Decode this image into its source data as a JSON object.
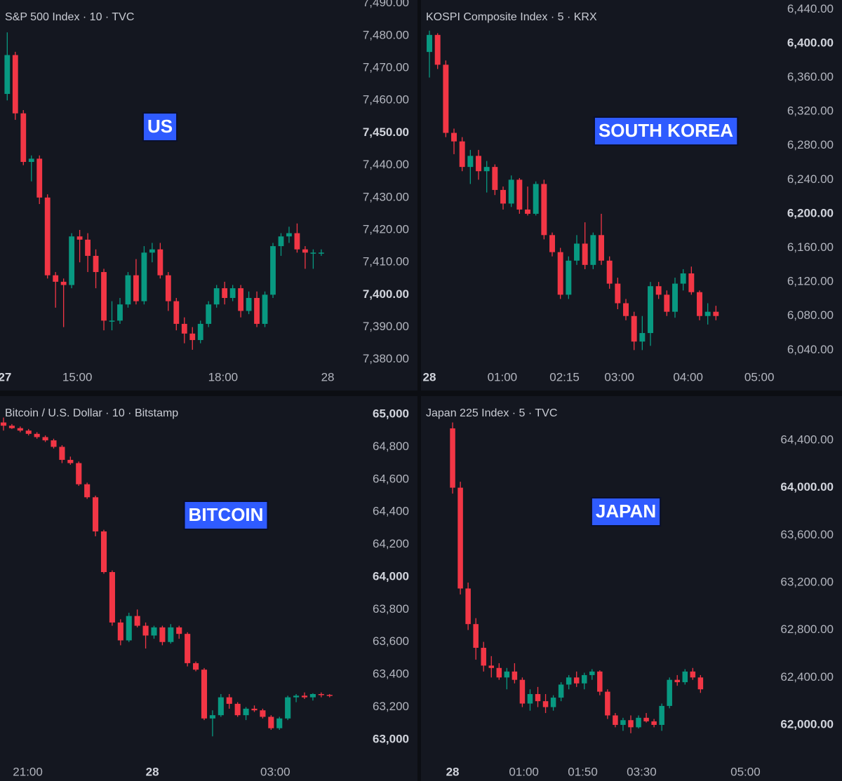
{
  "chart_data": [
    {
      "type": "candlestick",
      "title": "S&P 500 Index · 10 · TVC",
      "annotation": "US",
      "up_color": "#089981",
      "down_color": "#f23645",
      "ylim": [
        7378,
        7491
      ],
      "yticks": [
        {
          "value": 7490,
          "label": "7,490.00"
        },
        {
          "value": 7480,
          "label": "7,480.00"
        },
        {
          "value": 7470,
          "label": "7,470.00"
        },
        {
          "value": 7460,
          "label": "7,460.00"
        },
        {
          "value": 7450,
          "label": "7,450.00",
          "bold": true
        },
        {
          "value": 7440,
          "label": "7,440.00"
        },
        {
          "value": 7430,
          "label": "7,430.00"
        },
        {
          "value": 7420,
          "label": "7,420.00"
        },
        {
          "value": 7410,
          "label": "7,410.00"
        },
        {
          "value": 7400,
          "label": "7,400.00",
          "bold": true
        },
        {
          "value": 7390,
          "label": "7,390.00"
        },
        {
          "value": 7380,
          "label": "7,380.00"
        }
      ],
      "xlim": [
        -0.9,
        41.8
      ],
      "xticks": [
        {
          "value": -0.3,
          "label": "27",
          "bold": true
        },
        {
          "value": 8.7,
          "label": "15:00"
        },
        {
          "value": 26.8,
          "label": "18:00"
        },
        {
          "value": 39.8,
          "label": "28"
        }
      ],
      "candles": [
        [
          7462,
          7481,
          7460,
          7474
        ],
        [
          7474,
          7475,
          7454,
          7456
        ],
        [
          7456,
          7457,
          7440,
          7441
        ],
        [
          7441,
          7443,
          7435,
          7442
        ],
        [
          7442,
          7443,
          7428,
          7430
        ],
        [
          7430,
          7431,
          7405,
          7406
        ],
        [
          7406,
          7407,
          7396,
          7404
        ],
        [
          7404,
          7405,
          7390,
          7403
        ],
        [
          7403,
          7419,
          7402,
          7418
        ],
        [
          7418,
          7420,
          7410,
          7417
        ],
        [
          7417,
          7419,
          7407,
          7412
        ],
        [
          7412,
          7414,
          7402,
          7407
        ],
        [
          7407,
          7408,
          7389,
          7392
        ],
        [
          7392,
          7398,
          7389,
          7392
        ],
        [
          7392,
          7399,
          7391,
          7397
        ],
        [
          7397,
          7407,
          7396,
          7406
        ],
        [
          7406,
          7411,
          7397,
          7398
        ],
        [
          7398,
          7415,
          7397,
          7413
        ],
        [
          7413,
          7416,
          7410,
          7414
        ],
        [
          7414,
          7416,
          7405,
          7406
        ],
        [
          7406,
          7407,
          7395,
          7398
        ],
        [
          7398,
          7399,
          7389,
          7391
        ],
        [
          7391,
          7393,
          7385,
          7388
        ],
        [
          7388,
          7390,
          7383,
          7386
        ],
        [
          7386,
          7392,
          7385,
          7391
        ],
        [
          7391,
          7398,
          7390,
          7397
        ],
        [
          7397,
          7403,
          7396,
          7402
        ],
        [
          7402,
          7404,
          7397,
          7399
        ],
        [
          7399,
          7403,
          7398,
          7402
        ],
        [
          7402,
          7403,
          7393,
          7395
        ],
        [
          7395,
          7401,
          7394,
          7399
        ],
        [
          7399,
          7401,
          7390,
          7391
        ],
        [
          7391,
          7401,
          7390,
          7400
        ],
        [
          7400,
          7416,
          7399,
          7415
        ],
        [
          7415,
          7419,
          7412,
          7418
        ],
        [
          7418,
          7421,
          7416,
          7419
        ],
        [
          7419,
          7422,
          7413,
          7414
        ],
        [
          7414,
          7415,
          7408,
          7413
        ],
        [
          7413,
          7414,
          7408,
          7413
        ],
        [
          7413,
          7414,
          7412,
          7413
        ]
      ]
    },
    {
      "type": "candlestick",
      "title": "KOSPI Composite Index · 5 · KRX",
      "annotation": "SOUTH KOREA",
      "up_color": "#089981",
      "down_color": "#f23645",
      "ylim": [
        6023,
        6451
      ],
      "yticks": [
        {
          "value": 6440,
          "label": "6,440.00"
        },
        {
          "value": 6400,
          "label": "6,400.00",
          "bold": true
        },
        {
          "value": 6360,
          "label": "6,360.00"
        },
        {
          "value": 6320,
          "label": "6,320.00"
        },
        {
          "value": 6280,
          "label": "6,280.00"
        },
        {
          "value": 6240,
          "label": "6,240.00"
        },
        {
          "value": 6200,
          "label": "6,200.00",
          "bold": true
        },
        {
          "value": 6160,
          "label": "6,160.00"
        },
        {
          "value": 6120,
          "label": "6,120.00"
        },
        {
          "value": 6080,
          "label": "6,080.00"
        },
        {
          "value": 6040,
          "label": "6,040.00"
        }
      ],
      "xlim": [
        -1.03,
        41.4
      ],
      "xticks": [
        {
          "value": 0,
          "label": "28",
          "bold": true
        },
        {
          "value": 8.9,
          "label": "01:00"
        },
        {
          "value": 16.5,
          "label": "02:15"
        },
        {
          "value": 23.2,
          "label": "03:00"
        },
        {
          "value": 31.6,
          "label": "04:00"
        },
        {
          "value": 40.3,
          "label": "05:00"
        }
      ],
      "candles": [
        [
          6390,
          6415,
          6360,
          6410
        ],
        [
          6410,
          6412,
          6370,
          6375
        ],
        [
          6375,
          6380,
          6290,
          6295
        ],
        [
          6295,
          6300,
          6270,
          6285
        ],
        [
          6285,
          6290,
          6250,
          6255
        ],
        [
          6255,
          6275,
          6235,
          6268
        ],
        [
          6268,
          6275,
          6240,
          6250
        ],
        [
          6250,
          6262,
          6225,
          6255
        ],
        [
          6255,
          6258,
          6222,
          6228
        ],
        [
          6228,
          6232,
          6205,
          6212
        ],
        [
          6212,
          6245,
          6208,
          6240
        ],
        [
          6240,
          6242,
          6200,
          6205
        ],
        [
          6205,
          6232,
          6198,
          6200
        ],
        [
          6200,
          6238,
          6198,
          6235
        ],
        [
          6235,
          6240,
          6170,
          6175
        ],
        [
          6175,
          6178,
          6150,
          6155
        ],
        [
          6155,
          6160,
          6100,
          6105
        ],
        [
          6105,
          6150,
          6100,
          6145
        ],
        [
          6145,
          6175,
          6140,
          6165
        ],
        [
          6165,
          6190,
          6135,
          6140
        ],
        [
          6140,
          6178,
          6135,
          6175
        ],
        [
          6175,
          6200,
          6140,
          6145
        ],
        [
          6145,
          6150,
          6112,
          6118
        ],
        [
          6118,
          6125,
          6088,
          6095
        ],
        [
          6095,
          6100,
          6075,
          6080
        ],
        [
          6080,
          6085,
          6040,
          6050
        ],
        [
          6050,
          6080,
          6040,
          6060
        ],
        [
          6060,
          6120,
          6045,
          6115
        ],
        [
          6115,
          6120,
          6100,
          6105
        ],
        [
          6105,
          6110,
          6080,
          6085
        ],
        [
          6085,
          6125,
          6078,
          6118
        ],
        [
          6118,
          6135,
          6110,
          6130
        ],
        [
          6130,
          6138,
          6105,
          6108
        ],
        [
          6108,
          6110,
          6075,
          6080
        ],
        [
          6080,
          6095,
          6070,
          6085
        ],
        [
          6085,
          6092,
          6075,
          6080
        ]
      ]
    },
    {
      "type": "candlestick",
      "title": "Bitcoin / U.S. Dollar · 10 · Bitstamp",
      "annotation": "BITCOIN",
      "up_color": "#089981",
      "down_color": "#f23645",
      "ylim": [
        62892,
        65112
      ],
      "yticks": [
        {
          "value": 65000,
          "label": "65,000",
          "bold": true
        },
        {
          "value": 64800,
          "label": "64,800"
        },
        {
          "value": 64600,
          "label": "64,600"
        },
        {
          "value": 64400,
          "label": "64,400"
        },
        {
          "value": 64200,
          "label": "64,200"
        },
        {
          "value": 64000,
          "label": "64,000",
          "bold": true
        },
        {
          "value": 63800,
          "label": "63,800"
        },
        {
          "value": 63600,
          "label": "63,600"
        },
        {
          "value": 63400,
          "label": "63,400"
        },
        {
          "value": 63200,
          "label": "63,200"
        },
        {
          "value": 63000,
          "label": "63,000",
          "bold": true
        }
      ],
      "xlim": [
        -0.42,
        40.7
      ],
      "xticks": [
        {
          "value": 2.9,
          "label": "21:00"
        },
        {
          "value": 17.8,
          "label": "28",
          "bold": true
        },
        {
          "value": 32.5,
          "label": "03:00"
        }
      ],
      "candles": [
        [
          64950,
          64980,
          64900,
          64930
        ],
        [
          64930,
          64940,
          64910,
          64915
        ],
        [
          64915,
          64925,
          64890,
          64900
        ],
        [
          64900,
          64910,
          64870,
          64880
        ],
        [
          64880,
          64890,
          64850,
          64860
        ],
        [
          64860,
          64870,
          64830,
          64840
        ],
        [
          64840,
          64850,
          64790,
          64800
        ],
        [
          64800,
          64810,
          64700,
          64720
        ],
        [
          64720,
          64740,
          64690,
          64700
        ],
        [
          64700,
          64710,
          64560,
          64570
        ],
        [
          64570,
          64580,
          64480,
          64490
        ],
        [
          64490,
          64500,
          64250,
          64280
        ],
        [
          64280,
          64290,
          64020,
          64030
        ],
        [
          64030,
          64040,
          63700,
          63720
        ],
        [
          63720,
          63740,
          63580,
          63610
        ],
        [
          63610,
          63780,
          63600,
          63760
        ],
        [
          63760,
          63800,
          63690,
          63700
        ],
        [
          63700,
          63720,
          63560,
          63640
        ],
        [
          63640,
          63700,
          63620,
          63690
        ],
        [
          63690,
          63700,
          63580,
          63600
        ],
        [
          63600,
          63710,
          63590,
          63690
        ],
        [
          63690,
          63700,
          63620,
          63650
        ],
        [
          63650,
          63660,
          63450,
          63470
        ],
        [
          63470,
          63480,
          63420,
          63430
        ],
        [
          63430,
          63440,
          63120,
          63130
        ],
        [
          63130,
          63180,
          63020,
          63150
        ],
        [
          63150,
          63280,
          63140,
          63260
        ],
        [
          63260,
          63280,
          63190,
          63220
        ],
        [
          63220,
          63230,
          63140,
          63150
        ],
        [
          63150,
          63200,
          63120,
          63190
        ],
        [
          63190,
          63210,
          63170,
          63180
        ],
        [
          63180,
          63190,
          63130,
          63140
        ],
        [
          63140,
          63150,
          63060,
          63070
        ],
        [
          63070,
          63140,
          63060,
          63130
        ],
        [
          63130,
          63270,
          63120,
          63260
        ],
        [
          63260,
          63280,
          63230,
          63270
        ],
        [
          63270,
          63290,
          63250,
          63260
        ],
        [
          63260,
          63285,
          63240,
          63280
        ],
        [
          63280,
          63290,
          63260,
          63275
        ],
        [
          63275,
          63280,
          63260,
          63270
        ]
      ]
    },
    {
      "type": "candlestick",
      "title": "Japan 225 Index · 5 · TVC",
      "annotation": "JAPAN",
      "up_color": "#089981",
      "down_color": "#f23645",
      "ylim": [
        61728,
        64772
      ],
      "yticks": [
        {
          "value": 64400,
          "label": "64,400.00"
        },
        {
          "value": 64000,
          "label": "64,000.00",
          "bold": true
        },
        {
          "value": 63600,
          "label": "63,600.00"
        },
        {
          "value": 63200,
          "label": "63,200.00"
        },
        {
          "value": 62800,
          "label": "62,800.00"
        },
        {
          "value": 62400,
          "label": "62,400.00"
        },
        {
          "value": 62000,
          "label": "62,000.00",
          "bold": true
        }
      ],
      "xlim": [
        -4.08,
        40.3
      ],
      "xticks": [
        {
          "value": 0,
          "label": "28",
          "bold": true
        },
        {
          "value": 9.2,
          "label": "01:00"
        },
        {
          "value": 16.8,
          "label": "01:50"
        },
        {
          "value": 24.4,
          "label": "03:30"
        },
        {
          "value": 37.8,
          "label": "05:00"
        }
      ],
      "candles": [
        [
          64500,
          64550,
          63950,
          64000
        ],
        [
          64000,
          64050,
          63100,
          63150
        ],
        [
          63150,
          63200,
          62800,
          62850
        ],
        [
          62850,
          62900,
          62550,
          62650
        ],
        [
          62650,
          62700,
          62450,
          62500
        ],
        [
          62500,
          62580,
          62400,
          62480
        ],
        [
          62480,
          62520,
          62380,
          62400
        ],
        [
          62400,
          62480,
          62300,
          62450
        ],
        [
          62450,
          62520,
          62350,
          62380
        ],
        [
          62380,
          62400,
          62150,
          62180
        ],
        [
          62180,
          62300,
          62120,
          62260
        ],
        [
          62260,
          62320,
          62150,
          62200
        ],
        [
          62200,
          62260,
          62100,
          62150
        ],
        [
          62150,
          62250,
          62120,
          62230
        ],
        [
          62230,
          62360,
          62200,
          62340
        ],
        [
          62340,
          62420,
          62300,
          62400
        ],
        [
          62400,
          62450,
          62320,
          62350
        ],
        [
          62350,
          62440,
          62300,
          62420
        ],
        [
          62420,
          62470,
          62380,
          62450
        ],
        [
          62450,
          62460,
          62250,
          62280
        ],
        [
          62280,
          62300,
          62050,
          62080
        ],
        [
          62080,
          62100,
          61980,
          62000
        ],
        [
          62000,
          62060,
          61950,
          62040
        ],
        [
          62040,
          62080,
          61930,
          61980
        ],
        [
          61980,
          62080,
          61970,
          62060
        ],
        [
          62060,
          62100,
          62020,
          62030
        ],
        [
          62030,
          62050,
          61980,
          62000
        ],
        [
          62000,
          62180,
          61950,
          62160
        ],
        [
          62160,
          62400,
          62140,
          62380
        ],
        [
          62380,
          62420,
          62330,
          62360
        ],
        [
          62360,
          62470,
          62340,
          62450
        ],
        [
          62450,
          62480,
          62380,
          62400
        ],
        [
          62400,
          62420,
          62270,
          62300
        ]
      ]
    }
  ]
}
